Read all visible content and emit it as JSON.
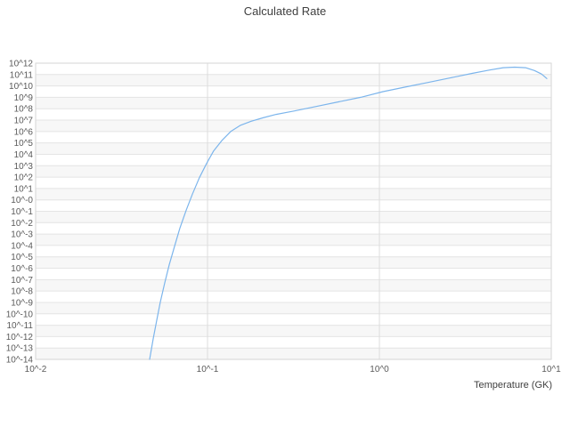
{
  "chart_data": {
    "type": "line",
    "title": "Calculated Rate",
    "xlabel": "Temperature (GK)",
    "ylabel": "",
    "x_scale": "log10",
    "y_scale": "log10",
    "xlim_log10": [
      -2,
      1
    ],
    "ylim_log10": [
      -14,
      12
    ],
    "grid": true,
    "legend": "none",
    "x_tick_labels": [
      "10^-2",
      "10^-1",
      "10^0",
      "10^1"
    ],
    "x_ticks_log10": [
      -2,
      -1,
      0,
      1
    ],
    "y_tick_labels": [
      "10^12",
      "10^11",
      "10^10",
      "10^9",
      "10^8",
      "10^7",
      "10^6",
      "10^5",
      "10^4",
      "10^3",
      "10^2",
      "10^1",
      "10^-0",
      "10^-1",
      "10^-2",
      "10^-3",
      "10^-4",
      "10^-5",
      "10^-6",
      "10^-7",
      "10^-8",
      "10^-9",
      "10^-10",
      "10^-11",
      "10^-12",
      "10^-13",
      "10^-14"
    ],
    "line_color": "#7cb5ec",
    "grid_color_h": "#e4e4e4",
    "grid_color_v": "#dcdcdc",
    "band_color": "#f7f7f7",
    "border_color": "#d6d6d6",
    "series": [
      {
        "name": "Calculated Rate",
        "points_log10": [
          [
            -1.337,
            -14.0
          ],
          [
            -1.316,
            -12.2
          ],
          [
            -1.296,
            -10.6
          ],
          [
            -1.275,
            -9.0
          ],
          [
            -1.249,
            -7.3
          ],
          [
            -1.223,
            -5.7
          ],
          [
            -1.192,
            -4.1
          ],
          [
            -1.161,
            -2.5
          ],
          [
            -1.124,
            -0.9
          ],
          [
            -1.088,
            0.5
          ],
          [
            -1.047,
            1.95
          ],
          [
            -1.005,
            3.2
          ],
          [
            -0.964,
            4.3
          ],
          [
            -0.917,
            5.2
          ],
          [
            -0.865,
            6.0
          ],
          [
            -0.808,
            6.55
          ],
          [
            -0.746,
            6.9
          ],
          [
            -0.679,
            7.2
          ],
          [
            -0.601,
            7.5
          ],
          [
            -0.497,
            7.8
          ],
          [
            -0.368,
            8.2
          ],
          [
            -0.238,
            8.6
          ],
          [
            -0.109,
            9.0
          ],
          [
            0.021,
            9.5
          ],
          [
            0.15,
            9.9
          ],
          [
            0.28,
            10.3
          ],
          [
            0.409,
            10.7
          ],
          [
            0.539,
            11.1
          ],
          [
            0.642,
            11.4
          ],
          [
            0.72,
            11.6
          ],
          [
            0.787,
            11.65
          ],
          [
            0.85,
            11.6
          ],
          [
            0.902,
            11.35
          ],
          [
            0.943,
            11.05
          ],
          [
            0.974,
            10.65
          ]
        ]
      }
    ]
  }
}
